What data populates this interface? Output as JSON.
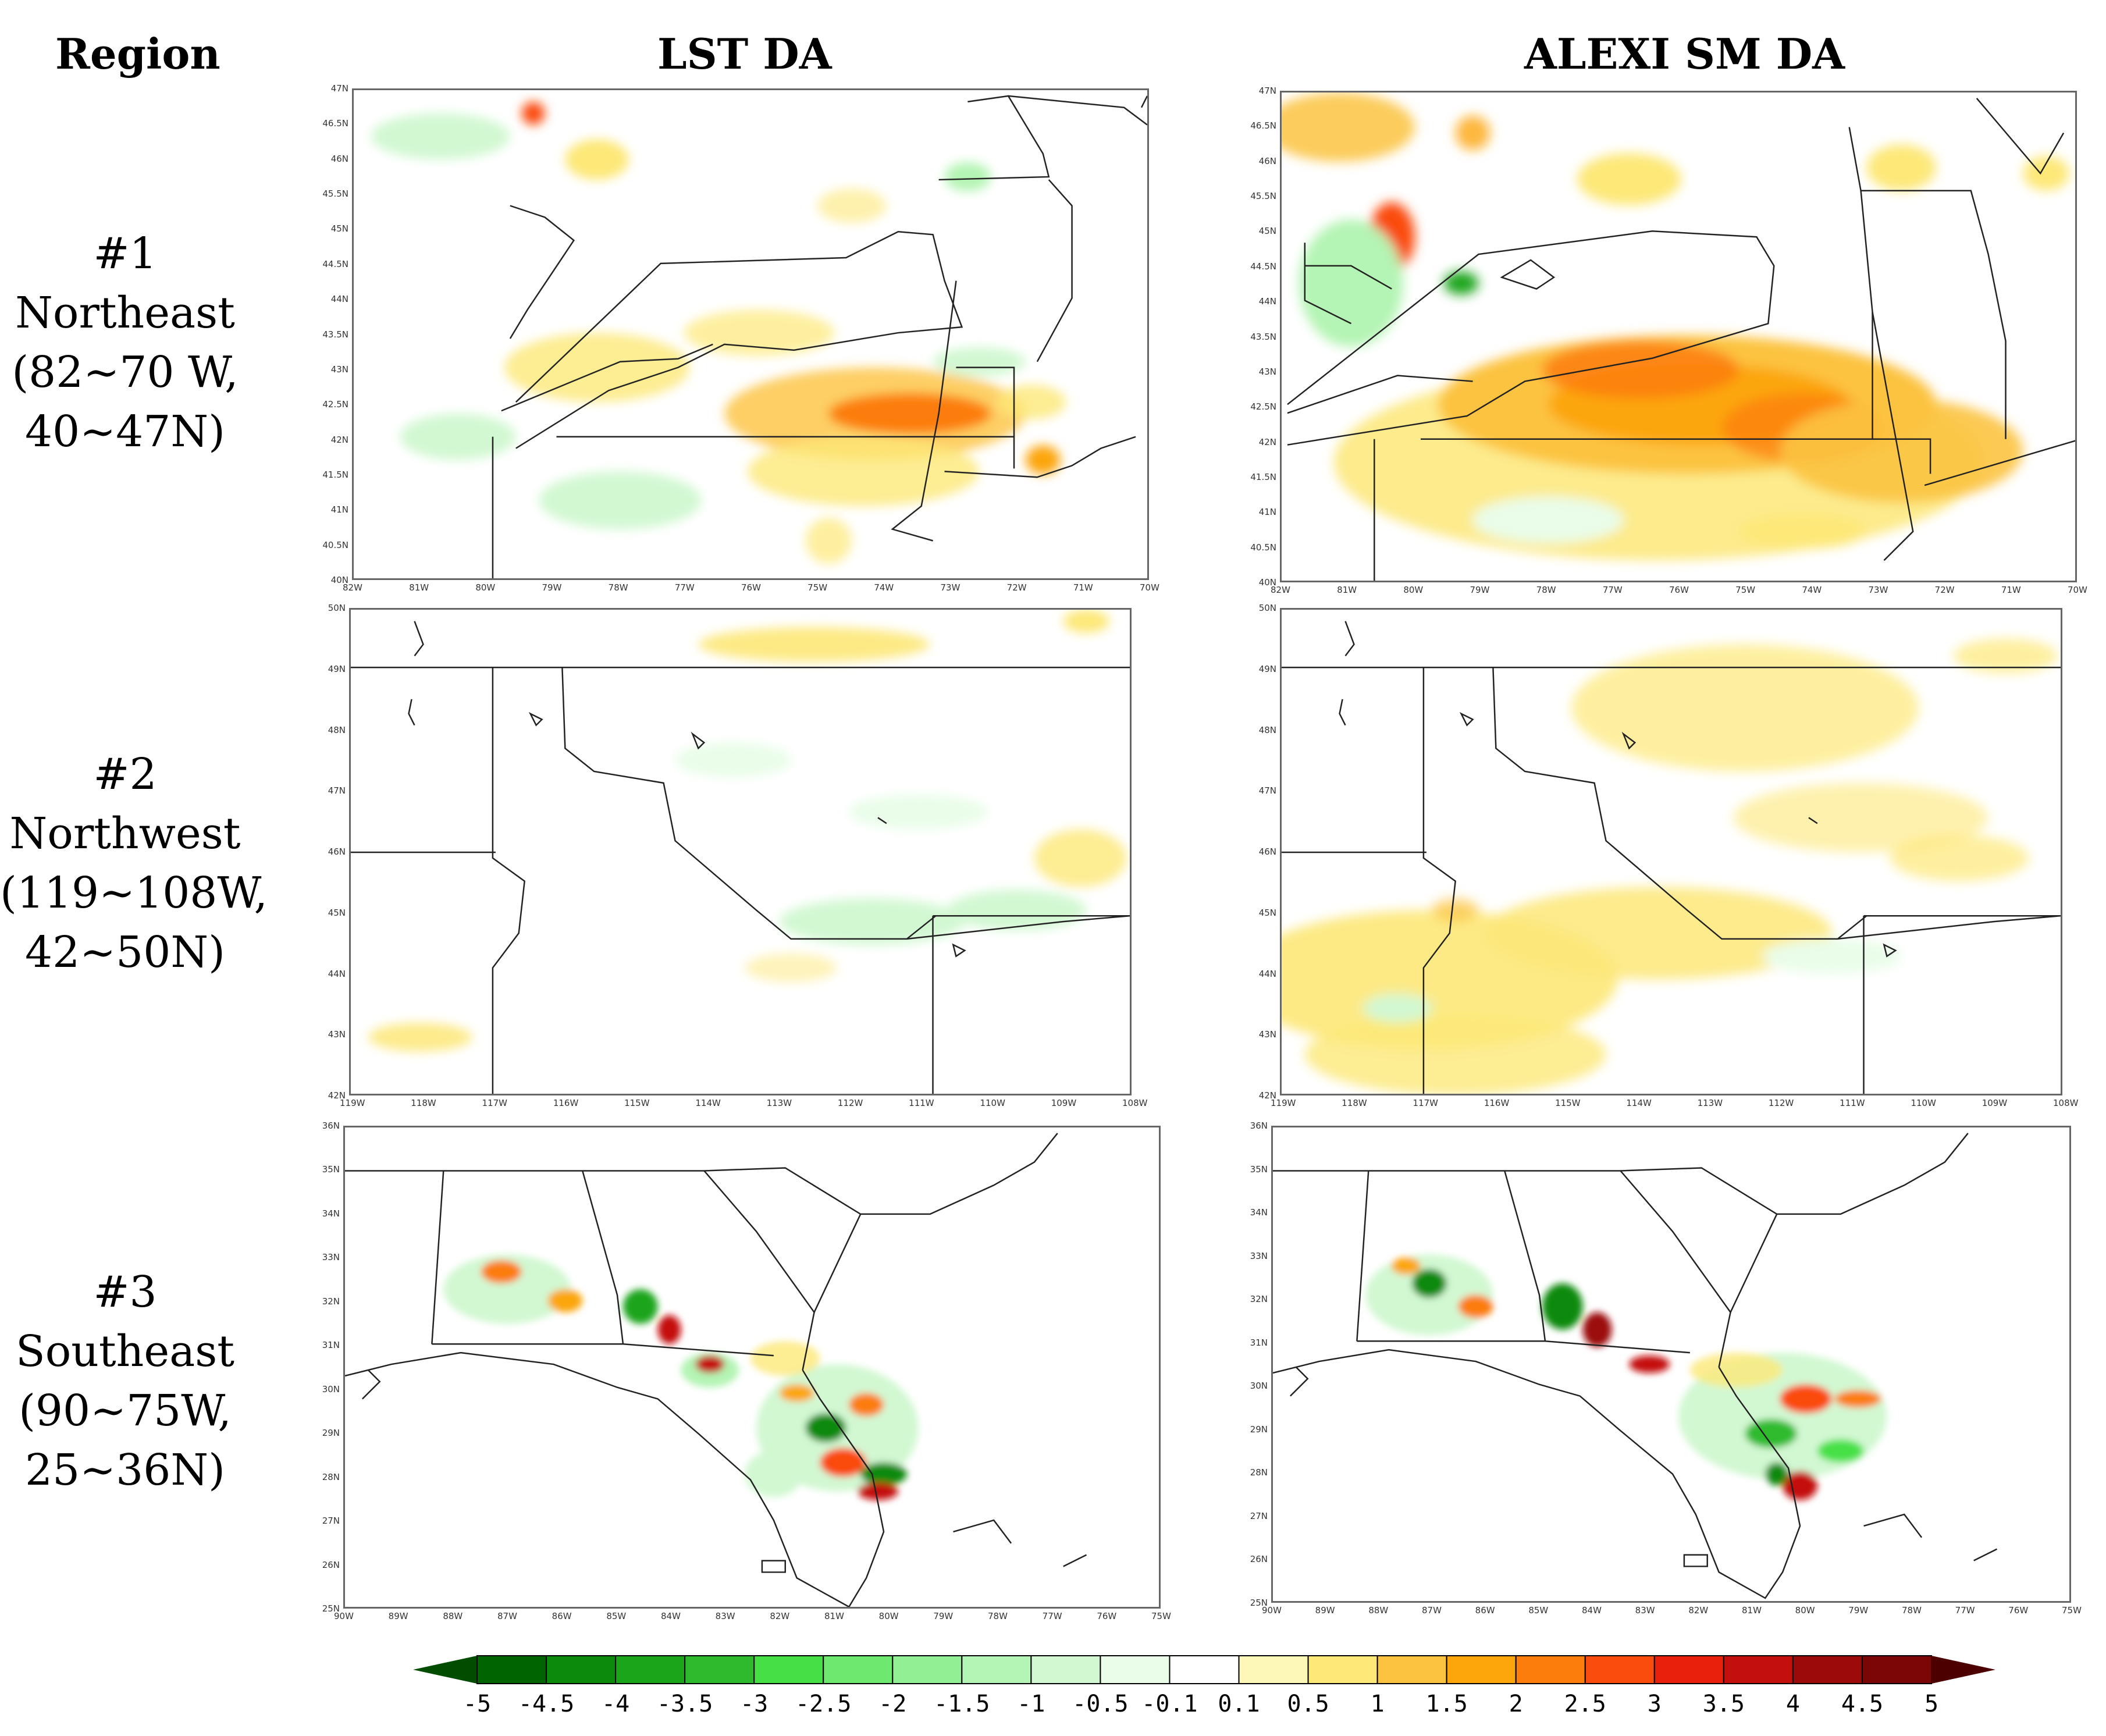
{
  "headers": {
    "region": "Region",
    "col1": "LST DA",
    "col2": "ALEXI SM DA"
  },
  "regions": [
    {
      "number": "#1",
      "name": "Northeast",
      "range_a": "(82~70 W,",
      "range_b": "40~47N)",
      "lat_ticks": [
        "47N",
        "46.5N",
        "46N",
        "45.5N",
        "45N",
        "44.5N",
        "44N",
        "43.5N",
        "43N",
        "42.5N",
        "42N",
        "41.5N",
        "41N",
        "40.5N",
        "40N"
      ],
      "lon_ticks": [
        "82W",
        "81W",
        "80W",
        "79W",
        "78W",
        "77W",
        "76W",
        "75W",
        "74W",
        "73W",
        "72W",
        "71W",
        "70W"
      ]
    },
    {
      "number": "#2",
      "name": "Northwest",
      "range_a": "(119~108W,",
      "range_b": "42~50N)",
      "lat_ticks": [
        "50N",
        "49N",
        "48N",
        "47N",
        "46N",
        "45N",
        "44N",
        "43N",
        "42N"
      ],
      "lon_ticks": [
        "119W",
        "118W",
        "117W",
        "116W",
        "115W",
        "114W",
        "113W",
        "112W",
        "111W",
        "110W",
        "109W",
        "108W"
      ]
    },
    {
      "number": "#3",
      "name": "Southeast",
      "range_a": "(90~75W,",
      "range_b": "25~36N)",
      "lat_ticks": [
        "36N",
        "35N",
        "34N",
        "33N",
        "32N",
        "31N",
        "30N",
        "29N",
        "28N",
        "27N",
        "26N",
        "25N"
      ],
      "lon_ticks": [
        "90W",
        "89W",
        "88W",
        "87W",
        "86W",
        "85W",
        "84W",
        "83W",
        "82W",
        "81W",
        "80W",
        "79W",
        "78W",
        "77W",
        "76W",
        "75W"
      ]
    }
  ],
  "colorbar": {
    "labels": [
      "-5",
      "-4.5",
      "-4",
      "-3.5",
      "-3",
      "-2.5",
      "-2",
      "-1.5",
      "-1",
      "-0.5",
      "-0.1",
      "0.1",
      "0.5",
      "1",
      "1.5",
      "2",
      "2.5",
      "3",
      "3.5",
      "4",
      "4.5",
      "5"
    ],
    "neg_colors": [
      "#006400",
      "#0c8a0c",
      "#1aa51a",
      "#2dbb2d",
      "#46e046",
      "#6ee86e",
      "#93ef93",
      "#b4f4b4",
      "#d2f8d2",
      "#e9fde9"
    ],
    "pos_colors": [
      "#fdf8b8",
      "#fde878",
      "#fcc340",
      "#fca60c",
      "#fc7d0c",
      "#fa4c0c",
      "#e8200c",
      "#c4100c",
      "#9c0a0a",
      "#7a0606"
    ],
    "under_color": "#004d00",
    "over_color": "#4d0000"
  }
}
